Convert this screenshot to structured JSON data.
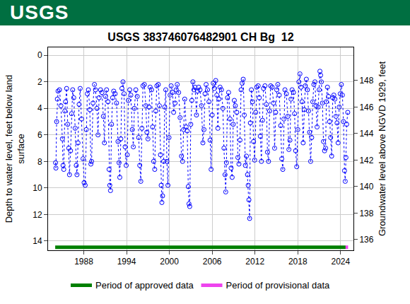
{
  "banner": {
    "text": "USGS",
    "color": "#006f41"
  },
  "chart_data": {
    "type": "scatter",
    "title": "USGS 383746076482901 CH Bg  12",
    "ylabel": [
      "Depth to water level, feet below land",
      "surface"
    ],
    "y2label": "Groundwater level above NGVD 1929, feet",
    "xlim": [
      1983,
      2025.8
    ],
    "xticks": [
      1988,
      1994,
      2000,
      2006,
      2012,
      2018,
      2024
    ],
    "ylim": [
      14.7,
      -0.6
    ],
    "yticks": [
      0,
      2,
      4,
      6,
      8,
      10,
      12,
      14
    ],
    "y2lim": [
      135.2,
      150.5
    ],
    "y2ticks": [
      136,
      138,
      140,
      142,
      144,
      146,
      148
    ],
    "grid": true,
    "legend": "bottom",
    "series": [
      {
        "color": "#0000ff",
        "marker": "circle-open",
        "line_style": "dot",
        "x": [
          1984.05,
          1984.1,
          1984.2,
          1984.3,
          1984.4,
          1984.6,
          1984.8,
          1985.0,
          1985.1,
          1985.2,
          1985.35,
          1985.45,
          1985.6,
          1985.75,
          1985.9,
          1986.0,
          1986.15,
          1986.3,
          1986.45,
          1986.6,
          1986.8,
          1986.95,
          1987.05,
          1987.2,
          1987.35,
          1987.5,
          1987.7,
          1987.9,
          1988.05,
          1988.2,
          1988.35,
          1988.5,
          1988.65,
          1988.85,
          1989.0,
          1989.1,
          1989.3,
          1989.5,
          1989.65,
          1989.85,
          1990.0,
          1990.15,
          1990.35,
          1990.55,
          1990.75,
          1990.9,
          1991.05,
          1991.2,
          1991.4,
          1991.55,
          1991.65,
          1991.75,
          1991.9,
          1992.05,
          1992.2,
          1992.4,
          1992.6,
          1992.8,
          1992.95,
          1993.05,
          1993.2,
          1993.35,
          1993.5,
          1993.65,
          1993.8,
          1993.95,
          1994.1,
          1994.25,
          1994.45,
          1994.6,
          1994.8,
          1994.95,
          1995.1,
          1995.3,
          1995.5,
          1995.7,
          1995.85,
          1996.0,
          1996.15,
          1996.3,
          1996.5,
          1996.7,
          1996.85,
          1997.0,
          1997.15,
          1997.3,
          1997.5,
          1997.65,
          1997.8,
          1997.95,
          1998.1,
          1998.25,
          1998.45,
          1998.6,
          1998.75,
          1998.85,
          1998.95,
          1999.05,
          1999.2,
          1999.35,
          1999.5,
          1999.65,
          1999.8,
          1999.95,
          2000.1,
          2000.25,
          2000.45,
          2000.6,
          2000.8,
          2000.95,
          2001.1,
          2001.3,
          2001.5,
          2001.7,
          2001.85,
          2002.0,
          2002.15,
          2002.35,
          2002.5,
          2002.65,
          2002.75,
          2002.85,
          2003.0,
          2003.15,
          2003.3,
          2003.45,
          2003.6,
          2003.8,
          2003.95,
          2004.1,
          2004.3,
          2004.5,
          2004.7,
          2004.85,
          2005.0,
          2005.15,
          2005.35,
          2005.55,
          2005.7,
          2005.85,
          2006.0,
          2006.15,
          2006.3,
          2006.5,
          2006.65,
          2006.8,
          2006.95,
          2007.1,
          2007.3,
          2007.5,
          2007.65,
          2007.8,
          2007.9,
          2008.0,
          2008.15,
          2008.3,
          2008.5,
          2008.65,
          2008.8,
          2008.95,
          2009.1,
          2009.25,
          2009.45,
          2009.6,
          2009.75,
          2009.9,
          2010.05,
          2010.2,
          2010.35,
          2010.5,
          2010.65,
          2010.8,
          2010.95,
          2011.05,
          2011.15,
          2011.25,
          2011.35,
          2011.5,
          2011.65,
          2011.8,
          2011.95,
          2012.1,
          2012.25,
          2012.45,
          2012.6,
          2012.75,
          2012.9,
          2013.05,
          2013.2,
          2013.4,
          2013.6,
          2013.75,
          2013.9,
          2014.05,
          2014.2,
          2014.4,
          2014.6,
          2014.75,
          2014.9,
          2015.05,
          2015.2,
          2015.4,
          2015.6,
          2015.75,
          2015.9,
          2016.05,
          2016.2,
          2016.4,
          2016.6,
          2016.75,
          2016.9,
          2017.05,
          2017.2,
          2017.4,
          2017.55,
          2017.7,
          2017.85,
          2018.0,
          2018.15,
          2018.3,
          2018.45,
          2018.6,
          2018.75,
          2018.9,
          2019.05,
          2019.2,
          2019.35,
          2019.5,
          2019.65,
          2019.8,
          2019.95,
          2020.1,
          2020.25,
          2020.4,
          2020.55,
          2020.7,
          2020.85,
          2021.0,
          2021.1,
          2021.2,
          2021.3,
          2021.45,
          2021.6,
          2021.75,
          2021.9,
          2022.0,
          2022.15,
          2022.3,
          2022.45,
          2022.6,
          2022.75,
          2022.9,
          2023.05,
          2023.2,
          2023.35,
          2023.5,
          2023.65,
          2023.8,
          2023.95,
          2024.1,
          2024.25,
          2024.4,
          2024.55,
          2024.65,
          2024.75,
          2024.85,
          2025.0
        ],
        "values": [
          8.1,
          8.5,
          5.0,
          3.3,
          2.7,
          2.6,
          3.8,
          6.3,
          8.3,
          8.6,
          4.2,
          3.5,
          2.5,
          5.2,
          7.0,
          9.0,
          7.2,
          4.4,
          2.6,
          3.2,
          5.5,
          8.3,
          9.0,
          6.6,
          3.7,
          2.5,
          4.8,
          7.8,
          9.6,
          9.8,
          5.6,
          2.9,
          2.6,
          4.1,
          8.2,
          8.0,
          3.6,
          2.2,
          2.6,
          4.0,
          6.0,
          3.2,
          2.6,
          2.8,
          4.6,
          6.6,
          3.1,
          2.6,
          3.5,
          8.6,
          9.8,
          10.2,
          5.2,
          3.2,
          2.7,
          2.9,
          3.6,
          6.5,
          8.1,
          9.2,
          6.3,
          2.5,
          2.0,
          2.9,
          6.9,
          8.3,
          7.5,
          3.4,
          2.6,
          3.0,
          5.6,
          6.9,
          4.0,
          2.6,
          3.1,
          6.2,
          8.3,
          9.5,
          5.5,
          2.3,
          2.2,
          3.8,
          5.8,
          6.3,
          3.9,
          2.4,
          2.6,
          5.4,
          8.0,
          8.6,
          4.2,
          2.3,
          2.2,
          3.8,
          7.5,
          9.8,
          11.1,
          10.6,
          8.0,
          3.9,
          2.6,
          8.0,
          9.8,
          6.2,
          3.0,
          2.3,
          2.8,
          4.3,
          3.6,
          2.6,
          2.2,
          2.8,
          4.7,
          7.6,
          8.0,
          5.6,
          3.3,
          5.4,
          5.7,
          9.9,
          11.2,
          11.4,
          5.2,
          3.4,
          2.0,
          2.6,
          2.4,
          4.5,
          2.7,
          2.4,
          2.6,
          3.8,
          6.6,
          5.6,
          2.9,
          2.2,
          2.6,
          3.5,
          6.4,
          8.6,
          4.5,
          2.1,
          2.5,
          1.9,
          3.0,
          5.5,
          3.3,
          2.4,
          2.6,
          4.0,
          7.0,
          9.0,
          10.3,
          8.1,
          3.2,
          2.8,
          4.8,
          8.5,
          9.2,
          5.2,
          3.4,
          3.8,
          4.3,
          7.7,
          8.2,
          6.4,
          2.6,
          2.1,
          1.8,
          4.5,
          8.3,
          7.6,
          9.0,
          9.8,
          10.9,
          12.3,
          5.1,
          2.6,
          3.5,
          6.5,
          7.9,
          4.3,
          2.4,
          2.3,
          3.2,
          6.1,
          8.0,
          4.9,
          2.5,
          2.3,
          3.7,
          7.3,
          8.0,
          4.2,
          2.3,
          2.4,
          3.6,
          7.0,
          4.3,
          2.6,
          2.2,
          3.0,
          5.3,
          7.8,
          8.6,
          4.8,
          2.6,
          2.9,
          4.6,
          7.1,
          6.4,
          3.3,
          2.6,
          2.8,
          4.4,
          7.2,
          8.4,
          5.6,
          2.0,
          1.4,
          2.4,
          3.5,
          6.6,
          4.1,
          2.3,
          1.8,
          2.6,
          4.2,
          5.8,
          8.0,
          6.2,
          3.5,
          2.2,
          2.0,
          3.8,
          5.4,
          3.9,
          2.6,
          1.2,
          1.5,
          2.0,
          3.6,
          6.5,
          7.2,
          7.0,
          3.5,
          2.4,
          3.1,
          5.0,
          6.2,
          7.6,
          3.2,
          3.0,
          3.3,
          4.6,
          5.1,
          6.6,
          3.9,
          2.9,
          2.2,
          3.0,
          5.0,
          8.7,
          9.5,
          7.7,
          5.2,
          4.3
        ]
      }
    ],
    "periods": [
      {
        "name": "Period of approved data",
        "color": "#008000",
        "start": 1984.0,
        "end": 2024.7
      },
      {
        "name": "Period of provisional data",
        "color": "#ee44ee",
        "start": 2024.7,
        "end": 2025.05
      }
    ]
  }
}
